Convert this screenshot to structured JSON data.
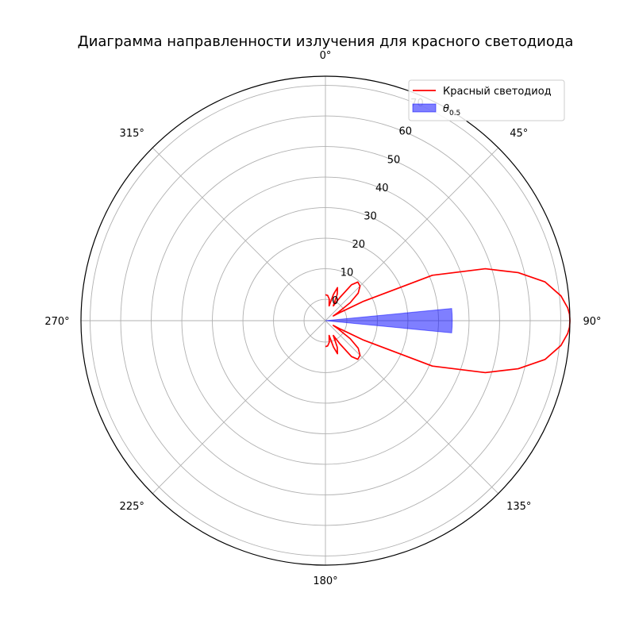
{
  "chart_data": {
    "type": "polar",
    "title": "Диаграмма направленности излучения для красного светодиода",
    "theta_zero_location": "top",
    "theta_direction": "clockwise",
    "angle_tick_labels": [
      "0°",
      "45°",
      "90°",
      "135°",
      "180°",
      "225°",
      "270°",
      "315°"
    ],
    "radial_tick_labels": [
      "0",
      "10",
      "20",
      "30",
      "40",
      "50",
      "60",
      "70"
    ],
    "radial_ticks": [
      0,
      10,
      20,
      30,
      40,
      50,
      60,
      70
    ],
    "rlim": [
      -7,
      73
    ],
    "grid": true,
    "legend_position": "top-right",
    "series": [
      {
        "name": "Красный светодиод",
        "kind": "line",
        "color": "#ff0000",
        "points_deg_value": [
          [
            0,
            1.5
          ],
          [
            5,
            1.3
          ],
          [
            10,
            0.2
          ],
          [
            14,
            -2
          ],
          [
            17,
            2
          ],
          [
            20,
            4.5
          ],
          [
            24,
            2.5
          ],
          [
            28,
            -1.5
          ],
          [
            32,
            2
          ],
          [
            36,
            7.5
          ],
          [
            40,
            9.5
          ],
          [
            45,
            9
          ],
          [
            50,
            7
          ],
          [
            54,
            3
          ],
          [
            57,
            -2
          ],
          [
            59,
            -4
          ],
          [
            61,
            -1
          ],
          [
            63,
            7
          ],
          [
            67,
            31
          ],
          [
            72,
            48
          ],
          [
            76,
            58
          ],
          [
            80,
            66
          ],
          [
            84,
            70.5
          ],
          [
            87,
            72.4
          ],
          [
            88.5,
            72.9
          ],
          [
            90,
            73
          ],
          [
            91.5,
            72.9
          ],
          [
            93,
            72.4
          ],
          [
            96,
            70.5
          ],
          [
            100,
            66
          ],
          [
            104,
            58
          ],
          [
            108,
            48
          ],
          [
            113,
            31
          ],
          [
            117,
            7
          ],
          [
            119,
            -1
          ],
          [
            121,
            -4
          ],
          [
            123,
            -2
          ],
          [
            126,
            3
          ],
          [
            130,
            7
          ],
          [
            135,
            9
          ],
          [
            140,
            9.5
          ],
          [
            144,
            7.5
          ],
          [
            148,
            2
          ],
          [
            152,
            -1.5
          ],
          [
            156,
            2.5
          ],
          [
            160,
            4.5
          ],
          [
            163,
            2
          ],
          [
            166,
            -2
          ],
          [
            170,
            0.2
          ],
          [
            175,
            1.3
          ],
          [
            180,
            1.5
          ]
        ]
      },
      {
        "name": "θ0.5",
        "kind": "filled-wedge",
        "color": "#0000ff",
        "angle_from_deg": 84.5,
        "angle_to_deg": 95.5,
        "radius_value": 34.5
      }
    ]
  }
}
